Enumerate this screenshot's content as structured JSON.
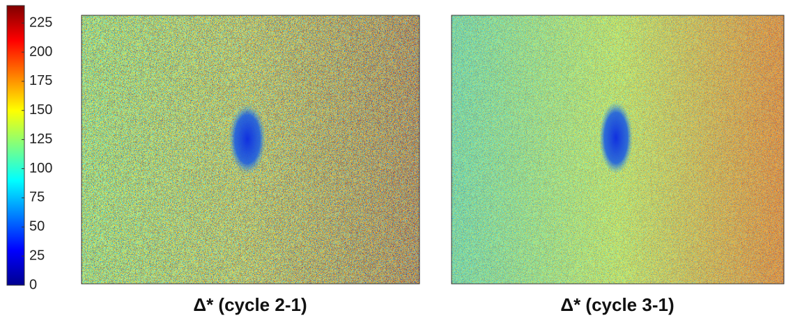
{
  "chart_data": {
    "type": "heatmap",
    "colorbar": {
      "clim": [
        0,
        240
      ],
      "ticks": [
        0,
        25,
        50,
        75,
        100,
        125,
        150,
        175,
        200,
        225
      ]
    },
    "panels": [
      {
        "caption": "Δ* (cycle 2-1)"
      },
      {
        "caption": "Δ* (cycle 3-1)"
      }
    ]
  }
}
